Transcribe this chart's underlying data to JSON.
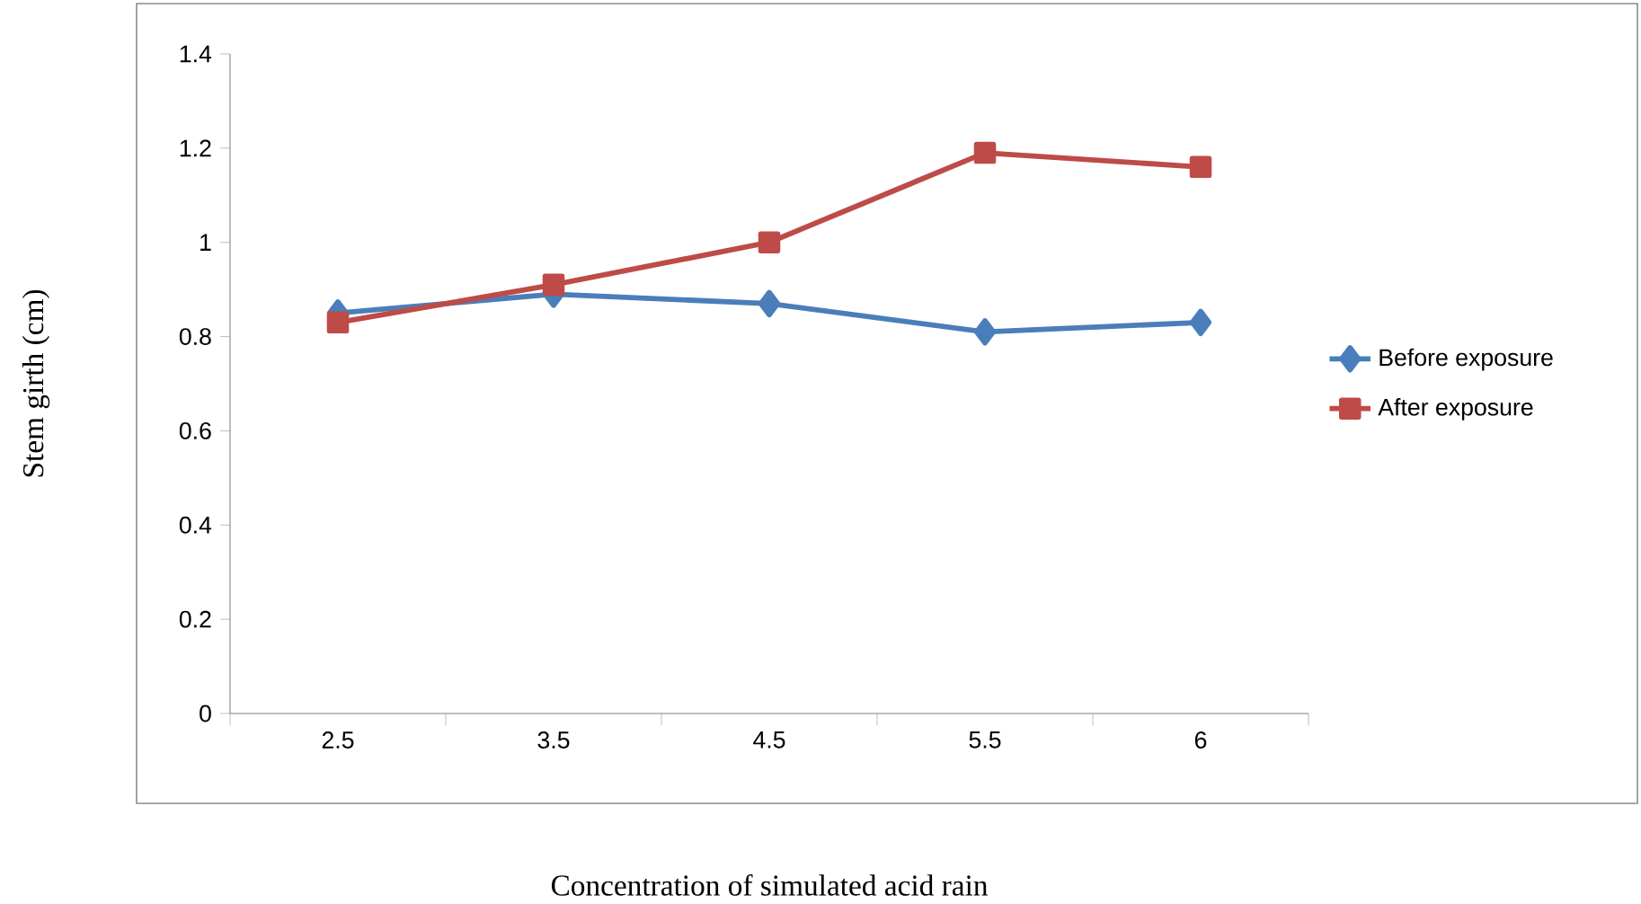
{
  "chart_data": {
    "type": "line",
    "xlabel": "Concentration of simulated acid rain",
    "ylabel": "Stem girth (cm)",
    "categories": [
      "2.5",
      "3.5",
      "4.5",
      "5.5",
      "6"
    ],
    "series": [
      {
        "name": "Before exposure",
        "color": "#4a7ebb",
        "marker": "diamond",
        "values": [
          0.85,
          0.89,
          0.87,
          0.81,
          0.83
        ]
      },
      {
        "name": "After exposure",
        "color": "#be4b48",
        "marker": "square",
        "values": [
          0.83,
          0.91,
          1.0,
          1.19,
          1.16
        ]
      }
    ],
    "ylim": [
      0,
      1.4
    ],
    "yticks": [
      0,
      0.2,
      0.4,
      0.6,
      0.8,
      1,
      1.2,
      1.4
    ],
    "legend": "right",
    "line_style": "solid"
  }
}
